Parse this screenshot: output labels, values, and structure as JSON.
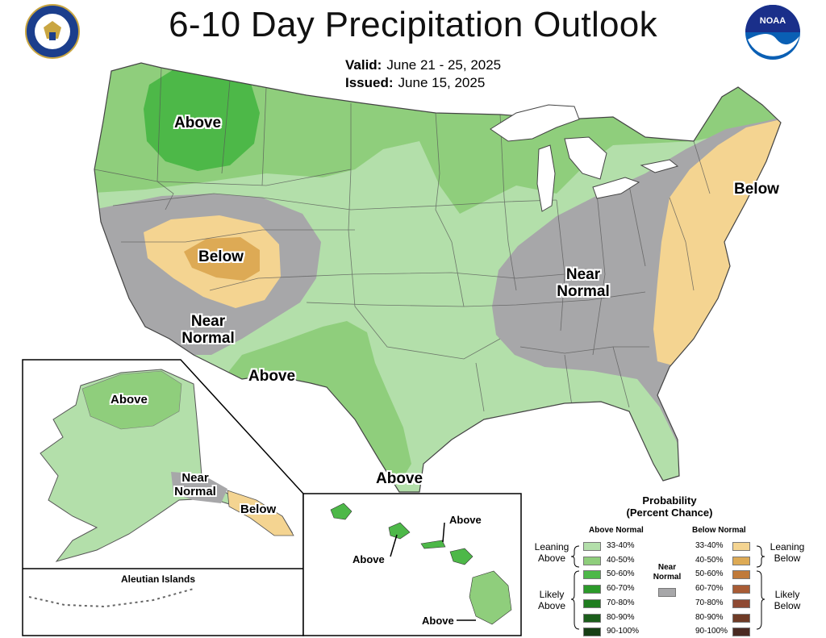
{
  "header": {
    "title": "6-10 Day Precipitation Outlook",
    "valid_label": "Valid:",
    "valid_value": "June 21 - 25, 2025",
    "issued_label": "Issued:",
    "issued_value": "June 15, 2025",
    "logo_text": "NOAA"
  },
  "map_labels": {
    "nw_above": "Above",
    "great_basin_below": "Below",
    "west_near_1": "Near",
    "west_near_2": "Normal",
    "sw_above": "Above",
    "east_near_1": "Near",
    "east_near_2": "Normal",
    "ne_below": "Below",
    "gulf_above": "Above"
  },
  "alaska": {
    "above": "Above",
    "near_1": "Near",
    "near_2": "Normal",
    "below": "Below",
    "aleutian_title": "Aleutian Islands"
  },
  "hawaii": {
    "above_ne": "Above",
    "above_w": "Above",
    "above_s": "Above"
  },
  "legend": {
    "title_1": "Probability",
    "title_2": "(Percent Chance)",
    "above_header": "Above Normal",
    "below_header": "Below Normal",
    "leaning_above_1": "Leaning",
    "leaning_above_2": "Above",
    "likely_above_1": "Likely",
    "likely_above_2": "Above",
    "leaning_below_1": "Leaning",
    "leaning_below_2": "Below",
    "likely_below_1": "Likely",
    "likely_below_2": "Below",
    "near_1": "Near",
    "near_2": "Normal",
    "above_bins": [
      "33-40%",
      "40-50%",
      "50-60%",
      "60-70%",
      "70-80%",
      "80-90%",
      "90-100%"
    ],
    "below_bins": [
      "33-40%",
      "40-50%",
      "50-60%",
      "60-70%",
      "70-80%",
      "80-90%",
      "90-100%"
    ],
    "above_colors": [
      "#b3dfaa",
      "#8fce7c",
      "#4db848",
      "#2c9a2a",
      "#1f7d1f",
      "#1b5e1b",
      "#173f15"
    ],
    "below_colors": [
      "#f4d491",
      "#ddaa55",
      "#c07a3a",
      "#a85c35",
      "#8f4a33",
      "#6f3b26",
      "#4a2a22"
    ],
    "near_color": "#a7a7a9"
  }
}
